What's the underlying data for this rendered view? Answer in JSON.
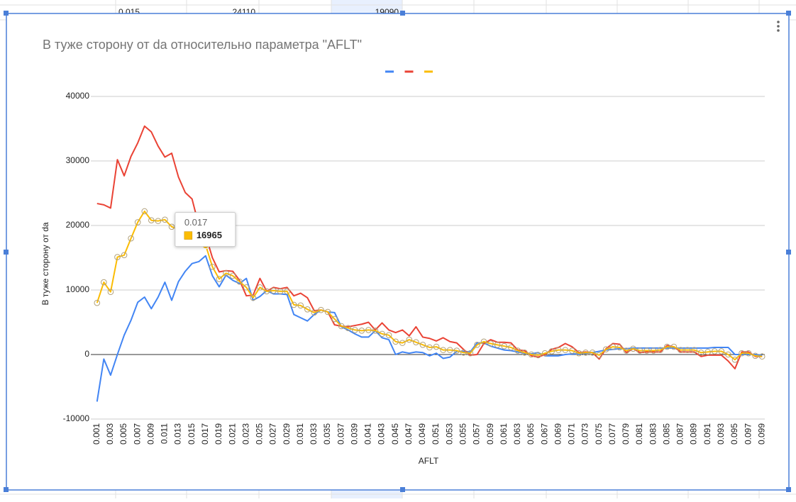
{
  "spreadsheet": {
    "rows": [
      [
        0.015,
        24110,
        19090
      ]
    ]
  },
  "chart_data": {
    "type": "line",
    "title": "В туже сторону от da относительно параметра \"AFLT\"",
    "y_label": "В туже сторону от da",
    "x_label": "AFLT",
    "categories": [
      "0.001",
      null,
      "0.003",
      null,
      "0.005",
      null,
      "0.007",
      null,
      "0.009",
      null,
      "0.011",
      null,
      "0.013",
      null,
      "0.015",
      null,
      "0.017",
      null,
      "0.019",
      null,
      "0.021",
      null,
      "0.023",
      null,
      "0.025",
      null,
      "0.027",
      null,
      "0.029",
      null,
      "0.031",
      null,
      "0.033",
      null,
      "0.035",
      null,
      "0.037",
      null,
      "0.039",
      null,
      "0.041",
      null,
      "0.043",
      null,
      "0.045",
      null,
      "0.047",
      null,
      "0.049",
      null,
      "0.051",
      null,
      "0.053",
      null,
      "0.055",
      null,
      "0.057",
      null,
      "0.059",
      null,
      "0.061",
      null,
      "0.063",
      null,
      "0.065",
      null,
      "0.067",
      null,
      "0.069",
      null,
      "0.071",
      null,
      "0.073",
      null,
      "0.075",
      null,
      "0.077",
      null,
      "0.079",
      null,
      "0.081",
      null,
      "0.083",
      null,
      "0.085",
      null,
      "0.087",
      null,
      "0.089",
      null,
      "0.091",
      null,
      "0.093",
      null,
      "0.095",
      null,
      "0.097",
      null,
      "0.099"
    ],
    "series": [
      {
        "color": "#4285f4",
        "values": [
          -7300,
          -700,
          -3200,
          0,
          3000,
          5300,
          8100,
          8900,
          7100,
          8900,
          11200,
          8400,
          11300,
          12900,
          14100,
          14400,
          15300,
          12200,
          10500,
          12300,
          11500,
          11000,
          11800,
          8400,
          9000,
          9900,
          9400,
          9400,
          9300,
          6200,
          5700,
          5200,
          6200,
          6900,
          6600,
          6500,
          4300,
          3800,
          3200,
          2700,
          2700,
          3700,
          2600,
          2300,
          0,
          400,
          200,
          400,
          300,
          -200,
          200,
          -600,
          -400,
          500,
          500,
          400,
          1800,
          1800,
          1300,
          1000,
          700,
          600,
          400,
          200,
          100,
          300,
          -200,
          -200,
          -200,
          0,
          100,
          100,
          200,
          300,
          500,
          700,
          800,
          900,
          900,
          1000,
          1000,
          1000,
          1000,
          1000,
          1000,
          1000,
          1000,
          1000,
          1000,
          1000,
          1000,
          1100,
          1100,
          1100,
          0,
          0,
          0,
          0,
          -100
        ]
      },
      {
        "color": "#ea4335",
        "values": [
          23400,
          23200,
          22700,
          30200,
          27700,
          30700,
          32800,
          35400,
          34500,
          32300,
          30600,
          31200,
          27500,
          25100,
          24110,
          20000,
          18500,
          15000,
          12800,
          13000,
          12900,
          11500,
          9100,
          9200,
          11800,
          9800,
          10400,
          10200,
          10400,
          9100,
          9500,
          8800,
          6800,
          6900,
          6600,
          4600,
          4400,
          4300,
          4500,
          4700,
          5000,
          3800,
          4900,
          3800,
          3400,
          3800,
          2900,
          4300,
          2700,
          2500,
          2100,
          2600,
          2000,
          1800,
          800,
          -100,
          0,
          1700,
          2300,
          1900,
          1900,
          1800,
          700,
          600,
          -200,
          -400,
          0,
          800,
          1100,
          1700,
          1200,
          300,
          400,
          300,
          -700,
          900,
          1700,
          1600,
          300,
          900,
          300,
          400,
          400,
          400,
          1400,
          1200,
          400,
          400,
          400,
          -300,
          -100,
          -100,
          -100,
          -1000,
          -2200,
          400,
          400,
          -300,
          -300
        ]
      },
      {
        "color": "#fbbc04",
        "markers": true,
        "values": [
          8000,
          11200,
          9700,
          15100,
          15400,
          18000,
          20500,
          22200,
          20800,
          20700,
          20900,
          19800,
          19400,
          19000,
          19090,
          17200,
          16965,
          13600,
          11700,
          12600,
          12200,
          11300,
          10400,
          8800,
          10400,
          9800,
          9900,
          9800,
          9800,
          7700,
          7600,
          7000,
          6500,
          6900,
          6600,
          5500,
          4400,
          4100,
          3800,
          3700,
          3800,
          3700,
          3200,
          3000,
          2000,
          1800,
          2300,
          1900,
          1500,
          1100,
          1200,
          700,
          700,
          600,
          300,
          200,
          1500,
          2000,
          1700,
          1500,
          1300,
          1100,
          600,
          300,
          0,
          -100,
          200,
          500,
          700,
          700,
          600,
          200,
          300,
          300,
          -100,
          800,
          1200,
          1100,
          600,
          900,
          600,
          600,
          600,
          700,
          1200,
          1200,
          700,
          700,
          700,
          300,
          400,
          500,
          500,
          0,
          -800,
          200,
          200,
          -200,
          -300
        ]
      }
    ],
    "ylim": [
      -10000,
      40000
    ],
    "yticks": [
      -10000,
      0,
      10000,
      20000,
      30000,
      40000
    ],
    "grid": true,
    "legend": "top",
    "tooltip_index": 16,
    "tooltip_series": 2
  }
}
